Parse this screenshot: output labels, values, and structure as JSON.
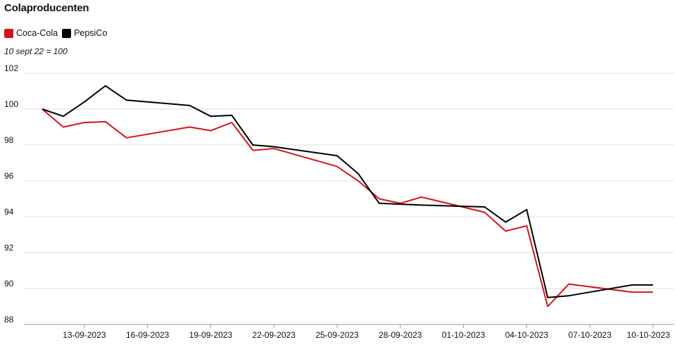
{
  "chart_data": {
    "type": "line",
    "title": "Colaproducenten",
    "subtitle": "10 sept 22 = 100",
    "xlabel": "",
    "ylabel": "",
    "ylim": [
      88,
      102
    ],
    "yticks": [
      88,
      90,
      92,
      94,
      96,
      98,
      100,
      102
    ],
    "x": [
      "2023-09-11",
      "2023-09-12",
      "2023-09-13",
      "2023-09-14",
      "2023-09-15",
      "2023-09-18",
      "2023-09-19",
      "2023-09-20",
      "2023-09-21",
      "2023-09-22",
      "2023-09-25",
      "2023-09-26",
      "2023-09-27",
      "2023-09-28",
      "2023-09-29",
      "2023-10-02",
      "2023-10-03",
      "2023-10-04",
      "2023-10-05",
      "2023-10-06",
      "2023-10-09",
      "2023-10-10"
    ],
    "xticks": [
      "2023-09-13",
      "2023-09-16",
      "2023-09-19",
      "2023-09-22",
      "2023-09-25",
      "2023-09-28",
      "2023-10-01",
      "2023-10-04",
      "2023-10-07",
      "2023-10-10"
    ],
    "xtick_labels": [
      "13-09-2023",
      "16-09-2023",
      "19-09-2023",
      "22-09-2023",
      "25-09-2023",
      "28-09-2023",
      "01-10-2023",
      "04-10-2023",
      "07-10-2023",
      "10-10-2023"
    ],
    "series": [
      {
        "name": "Coca-Cola",
        "color": "#d7141a",
        "values": [
          100.0,
          99.0,
          99.25,
          99.3,
          98.4,
          99.0,
          98.8,
          99.25,
          97.7,
          97.8,
          96.8,
          96.0,
          95.0,
          94.75,
          95.1,
          94.25,
          93.2,
          93.5,
          89.0,
          90.25,
          89.8,
          89.8
        ]
      },
      {
        "name": "PepsiCo",
        "color": "#000000",
        "values": [
          100.0,
          99.6,
          100.4,
          101.3,
          100.5,
          100.2,
          99.6,
          99.65,
          98.0,
          97.9,
          97.4,
          96.4,
          94.75,
          94.7,
          94.65,
          94.55,
          93.7,
          94.4,
          89.5,
          89.6,
          90.2,
          90.2
        ]
      }
    ],
    "grid": true,
    "legend": "top-left"
  }
}
